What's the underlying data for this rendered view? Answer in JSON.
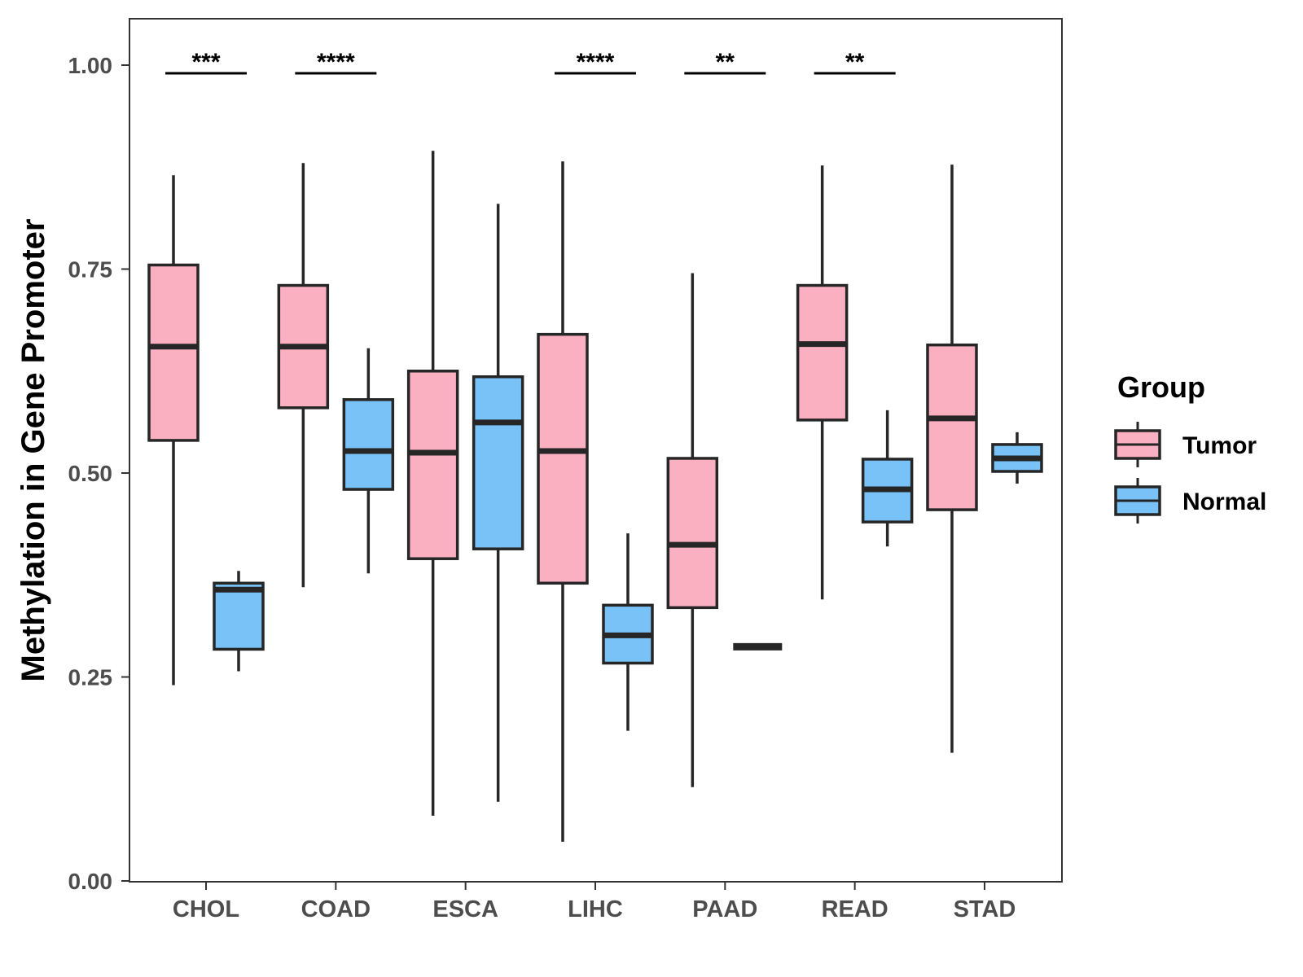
{
  "chart_data": {
    "type": "boxplot",
    "title": "",
    "xlabel": "",
    "ylabel": "Methylation in Gene Promoter",
    "ylim": [
      0,
      1.03
    ],
    "yticks": [
      0.0,
      0.25,
      0.5,
      0.75,
      1.0
    ],
    "ytick_labels": [
      "0.00",
      "0.25",
      "0.50",
      "0.75",
      "1.00"
    ],
    "grid": false,
    "categories": [
      "CHOL",
      "COAD",
      "ESCA",
      "LIHC",
      "PAAD",
      "READ",
      "STAD"
    ],
    "legend": {
      "title": "Group",
      "position": "right",
      "entries": [
        "Tumor",
        "Normal"
      ]
    },
    "colors": {
      "Tumor": "#fbb0c2",
      "Normal": "#78c2f7",
      "stroke": "#262626"
    },
    "series": [
      {
        "name": "Tumor",
        "boxes": [
          {
            "category": "CHOL",
            "min": 0.24,
            "q1": 0.54,
            "median": 0.655,
            "q3": 0.755,
            "max": 0.865
          },
          {
            "category": "COAD",
            "min": 0.36,
            "q1": 0.58,
            "median": 0.655,
            "q3": 0.73,
            "max": 0.88
          },
          {
            "category": "ESCA",
            "min": 0.08,
            "q1": 0.395,
            "median": 0.525,
            "q3": 0.625,
            "max": 0.895
          },
          {
            "category": "LIHC",
            "min": 0.048,
            "q1": 0.365,
            "median": 0.527,
            "q3": 0.67,
            "max": 0.882
          },
          {
            "category": "PAAD",
            "min": 0.115,
            "q1": 0.335,
            "median": 0.412,
            "q3": 0.518,
            "max": 0.745
          },
          {
            "category": "READ",
            "min": 0.345,
            "q1": 0.565,
            "median": 0.658,
            "q3": 0.73,
            "max": 0.877
          },
          {
            "category": "STAD",
            "min": 0.157,
            "q1": 0.455,
            "median": 0.567,
            "q3": 0.657,
            "max": 0.878
          }
        ]
      },
      {
        "name": "Normal",
        "boxes": [
          {
            "category": "CHOL",
            "min": 0.257,
            "q1": 0.284,
            "median": 0.357,
            "q3": 0.365,
            "max": 0.38
          },
          {
            "category": "COAD",
            "min": 0.377,
            "q1": 0.48,
            "median": 0.527,
            "q3": 0.59,
            "max": 0.653
          },
          {
            "category": "ESCA",
            "min": 0.097,
            "q1": 0.407,
            "median": 0.562,
            "q3": 0.618,
            "max": 0.83
          },
          {
            "category": "LIHC",
            "min": 0.184,
            "q1": 0.267,
            "median": 0.301,
            "q3": 0.338,
            "max": 0.426
          },
          {
            "category": "PAAD",
            "min": 0.287,
            "q1": 0.287,
            "median": 0.287,
            "q3": 0.287,
            "max": 0.287
          },
          {
            "category": "READ",
            "min": 0.41,
            "q1": 0.44,
            "median": 0.48,
            "q3": 0.517,
            "max": 0.577
          },
          {
            "category": "STAD",
            "min": 0.487,
            "q1": 0.502,
            "median": 0.518,
            "q3": 0.535,
            "max": 0.55
          }
        ]
      }
    ],
    "annotations": [
      {
        "category": "CHOL",
        "text": "***",
        "y": 0.99
      },
      {
        "category": "COAD",
        "text": "****",
        "y": 0.99
      },
      {
        "category": "LIHC",
        "text": "****",
        "y": 0.99
      },
      {
        "category": "PAAD",
        "text": "**",
        "y": 0.99
      },
      {
        "category": "READ",
        "text": "**",
        "y": 0.99
      }
    ]
  }
}
